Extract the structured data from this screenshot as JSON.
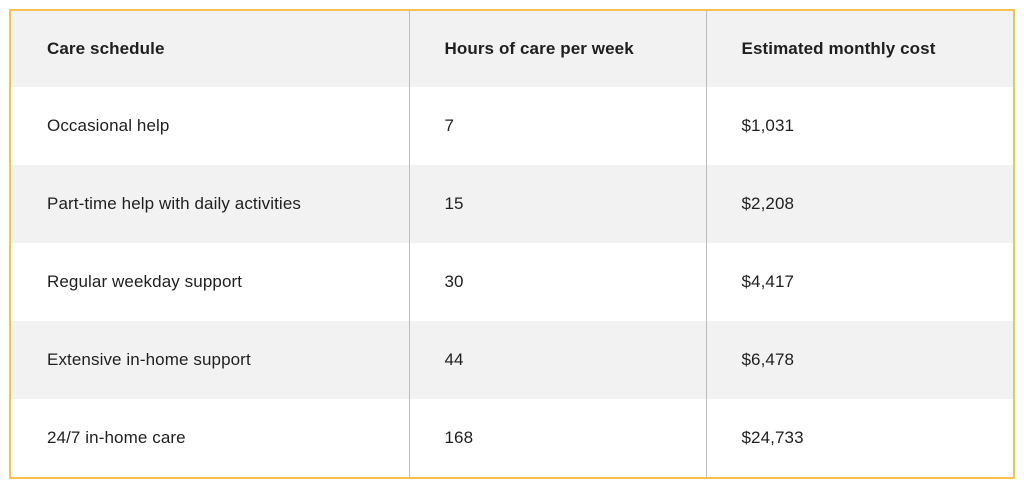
{
  "table": {
    "headers": [
      "Care schedule",
      "Hours of care per week",
      "Estimated monthly cost"
    ],
    "rows": [
      [
        "Occasional help",
        "7",
        "$1,031"
      ],
      [
        "Part-time help with daily activities",
        "15",
        "$2,208"
      ],
      [
        "Regular weekday support",
        "30",
        "$4,417"
      ],
      [
        "Extensive in-home support",
        "44",
        "$6,478"
      ],
      [
        "24/7 in-home care",
        "168",
        "$24,733"
      ]
    ]
  },
  "colors": {
    "border_accent": "#f4c24d",
    "shaded_row": "#f2f2f2",
    "divider": "#bdbdbd"
  }
}
